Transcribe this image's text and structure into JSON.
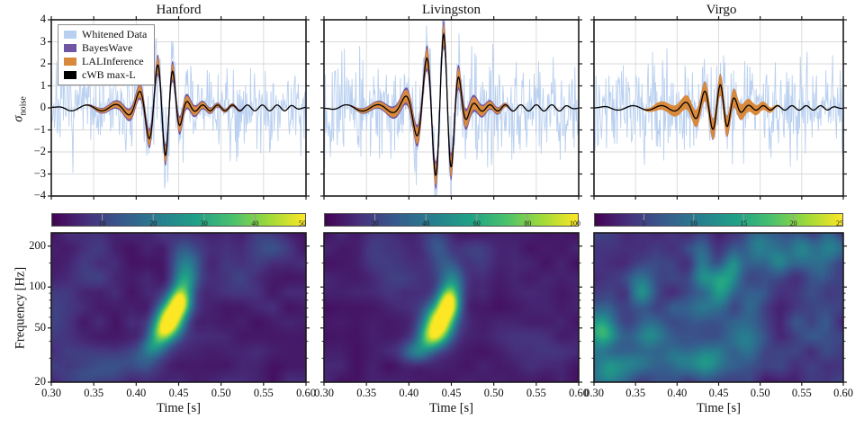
{
  "figure": {
    "kind": "gravitational-wave detection figure",
    "background": "#ffffff"
  },
  "legend": {
    "items": [
      {
        "label": "Whitened Data",
        "color": "#b9d0f0"
      },
      {
        "label": "BayesWave",
        "color": "#6f55a3"
      },
      {
        "label": "LALInference",
        "color": "#d8893c"
      },
      {
        "label": "cWB max-L",
        "color": "#000000"
      }
    ]
  },
  "chart_data": {
    "type": "line",
    "detectors": [
      "Hanford",
      "Livingston",
      "Virgo"
    ],
    "strain_row": {
      "ylabel_sigma": "σ",
      "ylabel_sub": "noise",
      "ylim": [
        -4,
        4
      ],
      "ytick_values": [
        4,
        3,
        2,
        1,
        0,
        -1,
        -2,
        -3,
        -4
      ],
      "ytick_labels": [
        "4",
        "3",
        "2",
        "1",
        "0",
        "−1",
        "−2",
        "−3",
        "−4"
      ],
      "xlim": [
        0.3,
        0.6
      ],
      "xtick_values": [
        0.3,
        0.35,
        0.4,
        0.45,
        0.5,
        0.55,
        0.6
      ],
      "grid": true,
      "series": [
        "Whitened Data",
        "BayesWave",
        "LALInference",
        "cWB max-L"
      ],
      "panels": [
        {
          "detector": "Hanford",
          "model": {
            "tc": 0.4345,
            "peak_sigma": 2.15,
            "sign": -1,
            "f0": 27,
            "f1": 57,
            "rise": 0.02,
            "decay": 0.0115,
            "ripple": 0.13,
            "noise_seed": 7,
            "noise_amp": 1.0,
            "band_support": [
              0.335,
              0.535
            ],
            "purple_w": [
              0.08,
              0.42
            ],
            "orange_w": [
              0.06,
              0.3
            ]
          }
        },
        {
          "detector": "Livingston",
          "model": {
            "tc": 0.441,
            "peak_sigma": 3.35,
            "sign": 1,
            "f0": 26,
            "f1": 55,
            "rise": 0.022,
            "decay": 0.013,
            "ripple": 0.14,
            "noise_seed": 13,
            "noise_amp": 1.05,
            "band_support": [
              0.325,
              0.528
            ],
            "purple_w": [
              0.1,
              0.55
            ],
            "orange_w": [
              0.08,
              0.4
            ]
          }
        },
        {
          "detector": "Virgo",
          "model": {
            "tc": 0.452,
            "peak_sigma": 1.05,
            "sign": 1,
            "f0": 27,
            "f1": 58,
            "rise": 0.022,
            "decay": 0.012,
            "ripple": 0.1,
            "noise_seed": 29,
            "noise_amp": 1.05,
            "band_support": [
              0.355,
              0.528
            ],
            "purple_w": [
              0.05,
              0.45
            ],
            "orange_w": [
              0.12,
              0.35
            ]
          }
        }
      ]
    },
    "spectrogram_row": {
      "type": "heatmap",
      "ylabel": "Frequency [Hz]",
      "xlabel": "Time [s]",
      "ylim": [
        20,
        250
      ],
      "yscale": "log",
      "ytick_values": [
        200,
        100,
        50,
        20
      ],
      "ytick_labels": [
        "200",
        "100",
        "50",
        "20"
      ],
      "yminor_values": [
        30,
        40,
        60,
        70,
        80,
        90,
        150
      ],
      "xtick_values": [
        0.3,
        0.35,
        0.4,
        0.45,
        0.5,
        0.55,
        0.6
      ],
      "xtick_labels": [
        "0.30",
        "0.35",
        "0.40",
        "0.45",
        "0.50",
        "0.55",
        "0.60"
      ],
      "colormap": "viridis",
      "colormap_stops": [
        "#440154",
        "#46327e",
        "#365c8d",
        "#277f8e",
        "#1fa187",
        "#4ac16d",
        "#a0da39",
        "#fde725"
      ],
      "panels": [
        {
          "detector": "Hanford",
          "colorbar_max": 50,
          "colorbar_tick_labels": [
            "0",
            "10",
            "20",
            "30",
            "40",
            "50"
          ],
          "bright_spot": {
            "t": 0.44,
            "f": 60
          },
          "noise": {
            "seed": 101,
            "amp": 0.1,
            "base": 0.04
          },
          "blobs": [
            {
              "t": 0.44,
              "f": 58,
              "st": 0.011,
              "sf": 0.085,
              "a": 1.0
            },
            {
              "t": 0.451,
              "f": 78,
              "st": 0.009,
              "sf": 0.075,
              "a": 0.8
            },
            {
              "t": 0.429,
              "f": 45,
              "st": 0.01,
              "sf": 0.065,
              "a": 0.55
            },
            {
              "t": 0.418,
              "f": 36,
              "st": 0.01,
              "sf": 0.06,
              "a": 0.3
            },
            {
              "t": 0.458,
              "f": 108,
              "st": 0.01,
              "sf": 0.09,
              "a": 0.38
            },
            {
              "t": 0.462,
              "f": 150,
              "st": 0.012,
              "sf": 0.09,
              "a": 0.18
            },
            {
              "t": 0.335,
              "f": 23,
              "st": 0.03,
              "sf": 0.09,
              "a": 0.13
            },
            {
              "t": 0.375,
              "f": 26,
              "st": 0.025,
              "sf": 0.08,
              "a": 0.1
            },
            {
              "t": 0.405,
              "f": 28,
              "st": 0.015,
              "sf": 0.07,
              "a": 0.12
            },
            {
              "t": 0.345,
              "f": 150,
              "st": 0.02,
              "sf": 0.18,
              "a": 0.09
            },
            {
              "t": 0.46,
              "f": 200,
              "st": 0.018,
              "sf": 0.1,
              "a": 0.12
            },
            {
              "t": 0.56,
              "f": 200,
              "st": 0.02,
              "sf": 0.1,
              "a": 0.12
            },
            {
              "t": 0.52,
              "f": 120,
              "st": 0.02,
              "sf": 0.12,
              "a": 0.08
            },
            {
              "t": 0.3,
              "f": 60,
              "st": 0.02,
              "sf": 0.2,
              "a": 0.1
            }
          ]
        },
        {
          "detector": "Livingston",
          "colorbar_max": 100,
          "colorbar_tick_labels": [
            "0",
            "20",
            "40",
            "60",
            "80",
            "100"
          ],
          "bright_spot": {
            "t": 0.44,
            "f": 60
          },
          "noise": {
            "seed": 202,
            "amp": 0.08,
            "base": 0.04
          },
          "blobs": [
            {
              "t": 0.436,
              "f": 55,
              "st": 0.012,
              "sf": 0.095,
              "a": 1.0
            },
            {
              "t": 0.447,
              "f": 76,
              "st": 0.009,
              "sf": 0.08,
              "a": 0.85
            },
            {
              "t": 0.424,
              "f": 42,
              "st": 0.011,
              "sf": 0.07,
              "a": 0.5
            },
            {
              "t": 0.408,
              "f": 33,
              "st": 0.012,
              "sf": 0.06,
              "a": 0.28
            },
            {
              "t": 0.452,
              "f": 110,
              "st": 0.01,
              "sf": 0.09,
              "a": 0.32
            },
            {
              "t": 0.44,
              "f": 160,
              "st": 0.012,
              "sf": 0.11,
              "a": 0.16
            },
            {
              "t": 0.43,
              "f": 230,
              "st": 0.012,
              "sf": 0.08,
              "a": 0.12
            },
            {
              "t": 0.37,
              "f": 200,
              "st": 0.02,
              "sf": 0.12,
              "a": 0.1
            },
            {
              "t": 0.39,
              "f": 100,
              "st": 0.02,
              "sf": 0.12,
              "a": 0.08
            },
            {
              "t": 0.48,
              "f": 170,
              "st": 0.015,
              "sf": 0.1,
              "a": 0.1
            },
            {
              "t": 0.55,
              "f": 40,
              "st": 0.03,
              "sf": 0.15,
              "a": 0.06
            }
          ]
        },
        {
          "detector": "Virgo",
          "colorbar_max": 25,
          "colorbar_tick_labels": [
            "0",
            "5",
            "10",
            "15",
            "20",
            "25"
          ],
          "bright_spot": null,
          "noise": {
            "seed": 303,
            "amp": 0.16,
            "base": 0.06
          },
          "blobs": [
            {
              "t": 0.308,
              "f": 48,
              "st": 0.014,
              "sf": 0.1,
              "a": 0.5
            },
            {
              "t": 0.312,
              "f": 24,
              "st": 0.02,
              "sf": 0.1,
              "a": 0.3
            },
            {
              "t": 0.356,
              "f": 95,
              "st": 0.012,
              "sf": 0.12,
              "a": 0.3
            },
            {
              "t": 0.368,
              "f": 45,
              "st": 0.015,
              "sf": 0.1,
              "a": 0.3
            },
            {
              "t": 0.352,
              "f": 28,
              "st": 0.02,
              "sf": 0.08,
              "a": 0.22
            },
            {
              "t": 0.405,
              "f": 28,
              "st": 0.018,
              "sf": 0.09,
              "a": 0.3
            },
            {
              "t": 0.43,
              "f": 150,
              "st": 0.009,
              "sf": 0.14,
              "a": 0.3
            },
            {
              "t": 0.452,
              "f": 100,
              "st": 0.011,
              "sf": 0.12,
              "a": 0.36
            },
            {
              "t": 0.468,
              "f": 130,
              "st": 0.009,
              "sf": 0.11,
              "a": 0.3
            },
            {
              "t": 0.44,
              "f": 28,
              "st": 0.015,
              "sf": 0.09,
              "a": 0.28
            },
            {
              "t": 0.478,
              "f": 40,
              "st": 0.018,
              "sf": 0.11,
              "a": 0.26
            },
            {
              "t": 0.5,
              "f": 200,
              "st": 0.013,
              "sf": 0.1,
              "a": 0.32
            },
            {
              "t": 0.523,
              "f": 170,
              "st": 0.01,
              "sf": 0.1,
              "a": 0.24
            },
            {
              "t": 0.55,
              "f": 195,
              "st": 0.012,
              "sf": 0.09,
              "a": 0.28
            },
            {
              "t": 0.578,
              "f": 150,
              "st": 0.01,
              "sf": 0.11,
              "a": 0.2
            },
            {
              "t": 0.59,
              "f": 210,
              "st": 0.012,
              "sf": 0.09,
              "a": 0.18
            },
            {
              "t": 0.42,
              "f": 65,
              "st": 0.02,
              "sf": 0.14,
              "a": 0.18
            },
            {
              "t": 0.565,
              "f": 55,
              "st": 0.02,
              "sf": 0.18,
              "a": 0.12
            },
            {
              "t": 0.49,
              "f": 75,
              "st": 0.015,
              "sf": 0.1,
              "a": 0.15
            }
          ]
        }
      ]
    }
  }
}
